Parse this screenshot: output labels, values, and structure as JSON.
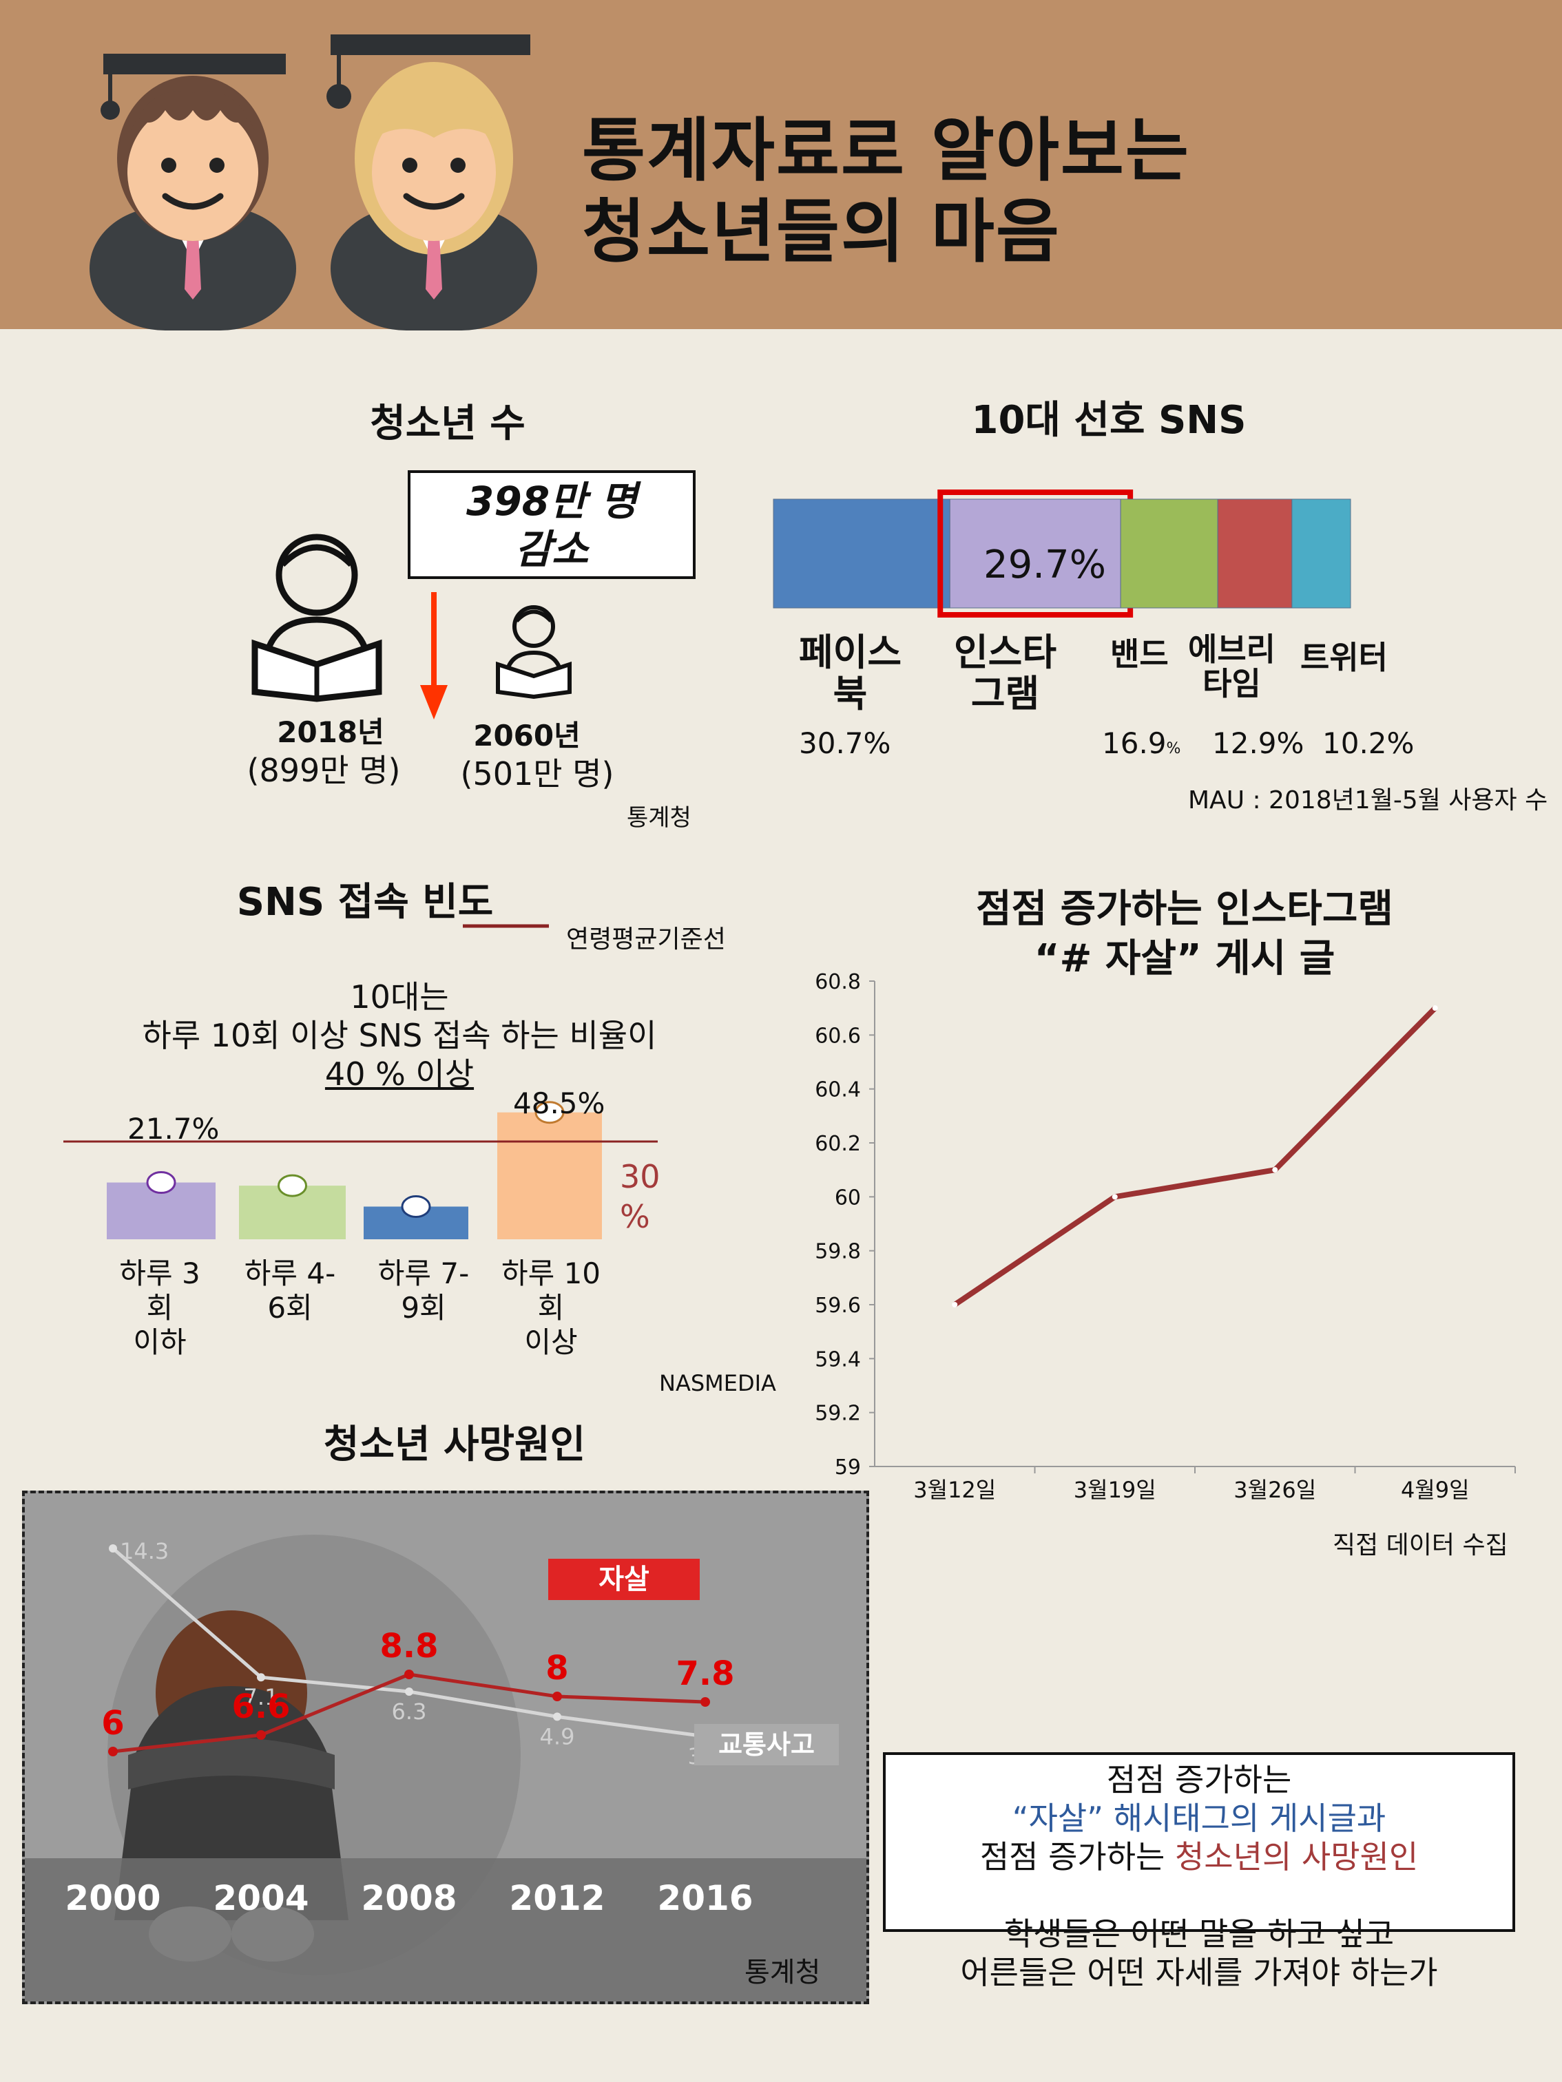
{
  "header": {
    "title_line1": "통계자료로 알아보는",
    "title_line2": "청소년들의 마음"
  },
  "youth_population": {
    "title": "청소년 수",
    "decrease_line1": "398만 명",
    "decrease_line2": "감소",
    "year1": "2018년",
    "year1_count": "(899만 명)",
    "year2": "2060년",
    "year2_count": "(501만 명)",
    "source": "통계청"
  },
  "sns_pref": {
    "title": "10대 선호 SNS",
    "highlight_label": "29.7%",
    "names": [
      "페이스\n북",
      "인스타\n그램",
      "밴드",
      "에브리\n타임",
      "트위터"
    ],
    "pct_facebook": "30.7%",
    "pct_band": "16.9",
    "pct_unit_small": "%",
    "pct_everytime": "12.9%",
    "pct_twitter": "10.2%",
    "note": "MAU : 2018년1월-5월 사용자 수",
    "colors": [
      "#4f81bd",
      "#b4a7d6",
      "#9bbb59",
      "#c0504d",
      "#4bacc6"
    ]
  },
  "sns_freq": {
    "title": "SNS 접속 빈도",
    "legend": "연령평균기준선",
    "caption_line1": "10대는",
    "caption_line2": "하루 10회 이상 SNS 접속 하는 비율이",
    "caption_line3": "40 % 이상",
    "label_first": "21.7%",
    "label_last": "48.5%",
    "baseline_line1": "30",
    "baseline_line2": "%",
    "source": "NASMEDIA"
  },
  "death_cause": {
    "title": "청소년 사망원인",
    "suicide_label": "자살",
    "traffic_label": "교통사고",
    "source": "통계청"
  },
  "instagram_trend": {
    "title_line1": "점점 증가하는  인스타그램",
    "title_line2": "“# 자살” 게시 글",
    "source": "직접 데이터 수집"
  },
  "conclusion": {
    "line1": "점점 증가하는",
    "line2_blue": "“자살” 해시태그의 게시글과",
    "line3_pre": "점점 증가하는 ",
    "line3_red": "청소년의 사망원인",
    "line4": "학생들은 어떤 말을 하고 싶고",
    "line5": "어른들은 어떤 자세를 가져야 하는가"
  },
  "chart_data": [
    {
      "type": "bar",
      "title": "10대 선호 SNS",
      "categories": [
        "페이스북",
        "인스타그램",
        "밴드",
        "에브리타임",
        "트위터"
      ],
      "values": [
        30.7,
        29.7,
        16.9,
        12.9,
        10.2
      ]
    },
    {
      "type": "bar",
      "title": "SNS 접속 빈도",
      "categories": [
        "하루 3회 이하",
        "하루 4-6회",
        "하루 7-9회",
        "하루 10회 이상"
      ],
      "values": [
        21.7,
        20.5,
        12.5,
        48.5
      ],
      "colors": [
        "#b4a7d6",
        "#c5dc9e",
        "#4f81bd",
        "#fac090"
      ],
      "reference_line": {
        "name": "연령평균기준선",
        "value": 30
      },
      "ylim": [
        0,
        60
      ]
    },
    {
      "type": "line",
      "title": "청소년 사망원인",
      "x": [
        "2000",
        "2004",
        "2008",
        "2012",
        "2016"
      ],
      "series": [
        {
          "name": "자살",
          "values": [
            6,
            6.6,
            8.8,
            8,
            7.8
          ]
        },
        {
          "name": "교통사고",
          "values": [
            14.3,
            7.1,
            6.3,
            4.9,
            3.8
          ]
        }
      ]
    },
    {
      "type": "line",
      "title": "점점 증가하는  인스타그램 “# 자살” 게시 글",
      "x": [
        "3월12일",
        "3월19일",
        "3월26일",
        "4월9일"
      ],
      "series": [
        {
          "values": [
            59.6,
            60,
            60.1,
            60.7
          ]
        }
      ],
      "ylim": [
        59,
        60.8
      ],
      "yticks": [
        "59",
        "59.2",
        "59.4",
        "59.6",
        "59.8",
        "60",
        "60.2",
        "60.4",
        "60.6",
        "60.8"
      ]
    }
  ]
}
